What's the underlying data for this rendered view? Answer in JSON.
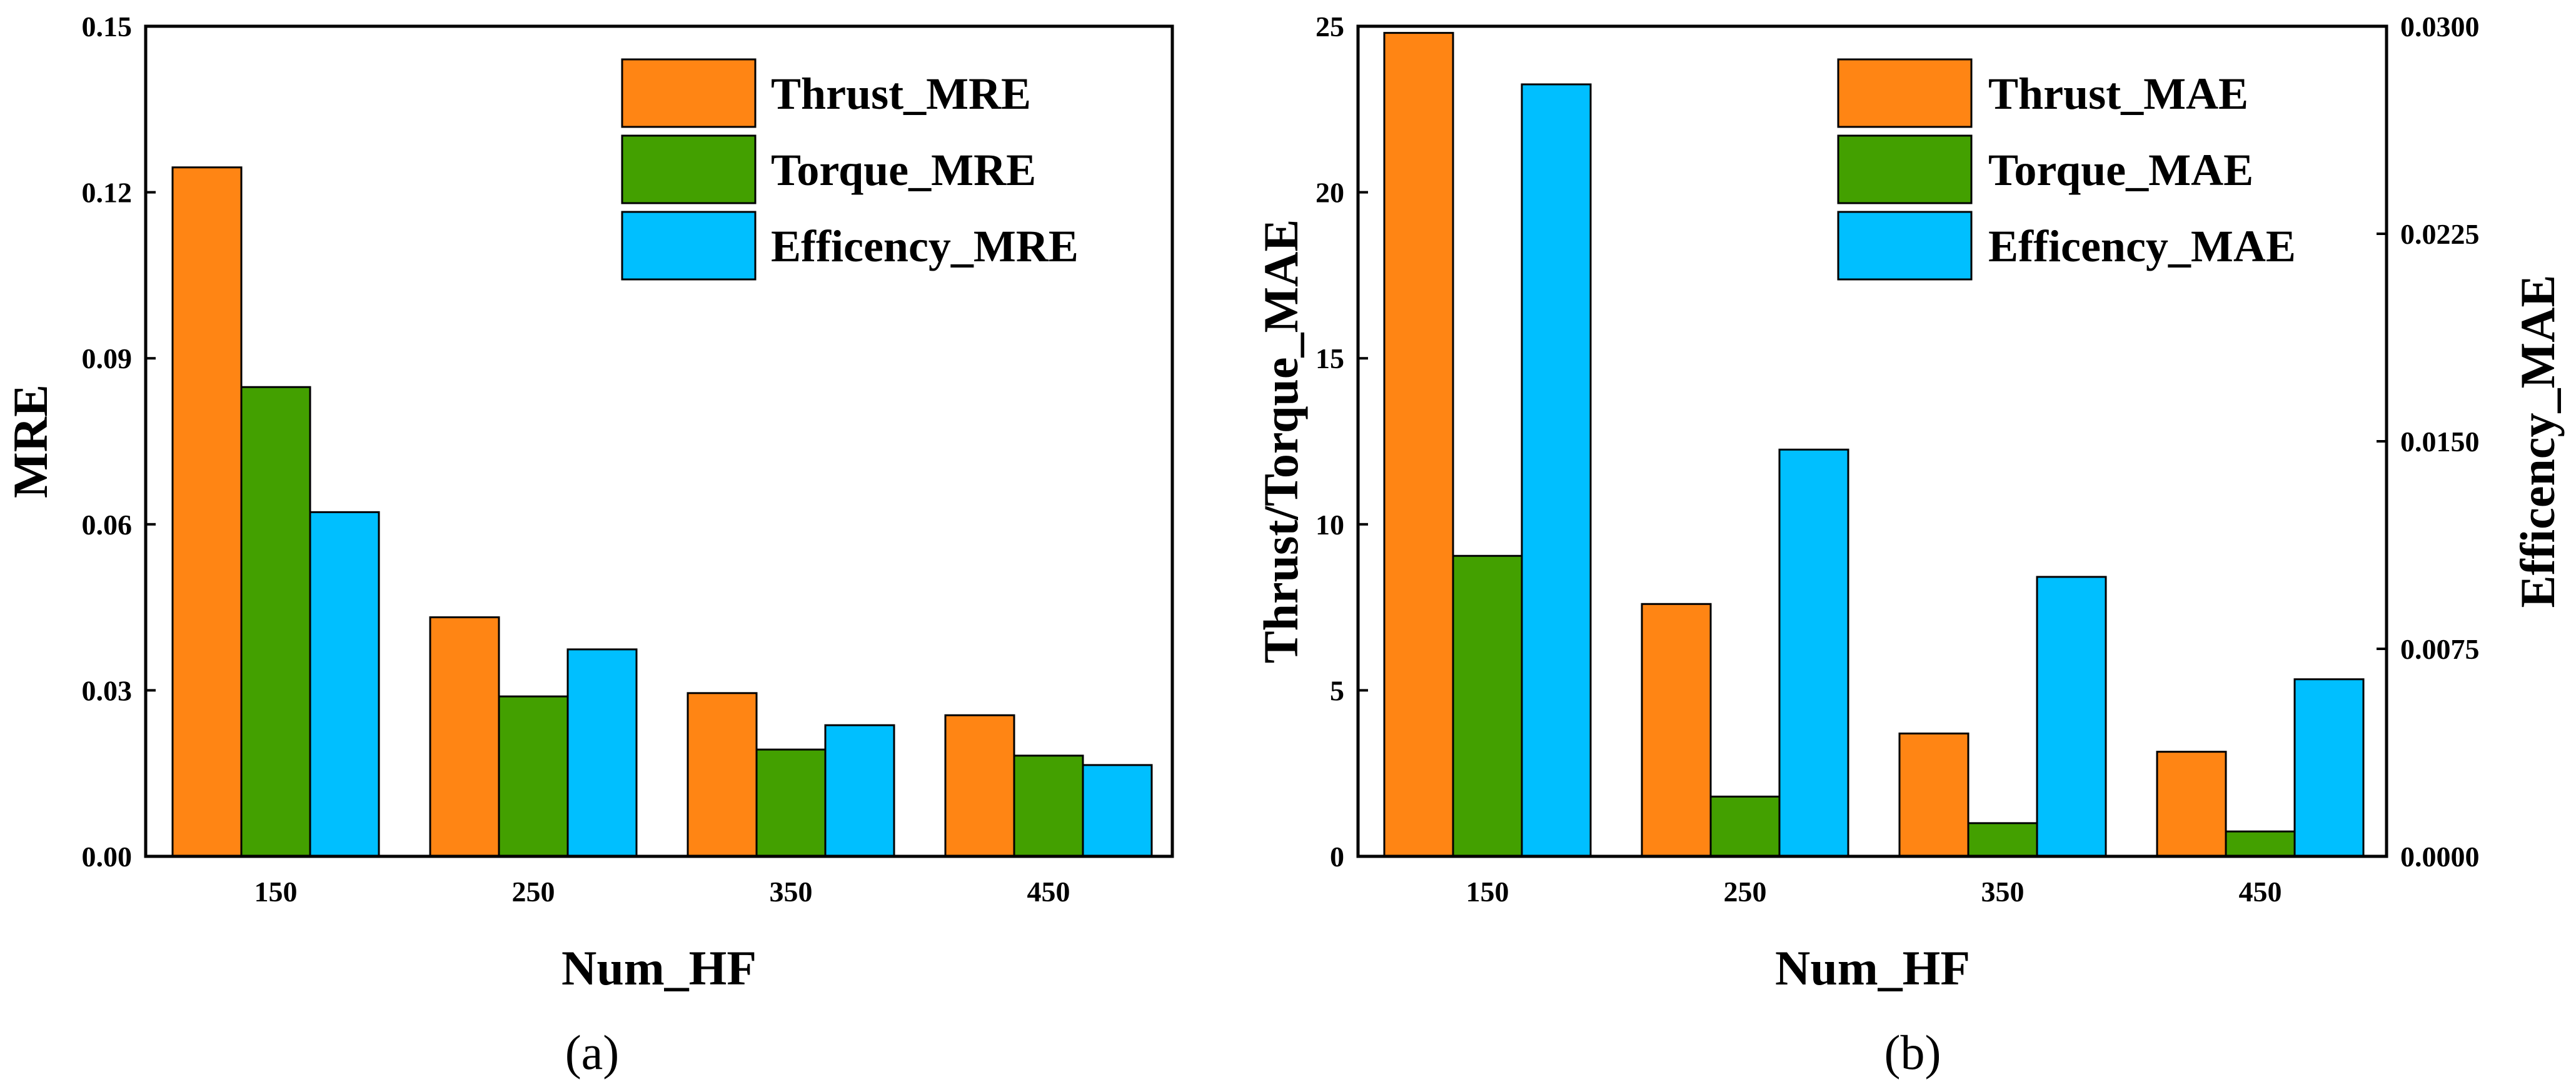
{
  "chart_data": [
    {
      "type": "bar",
      "panel": "a",
      "caption": "(a)",
      "xlabel": "Num_HF",
      "ylabel": "MRE",
      "categories": [
        "150",
        "250",
        "350",
        "450"
      ],
      "ylim": [
        0,
        0.15
      ],
      "yticks": [
        0,
        0.03,
        0.06,
        0.09,
        0.12,
        0.15
      ],
      "ytick_labels": [
        "0.00",
        "0.03",
        "0.06",
        "0.09",
        "0.12",
        "0.15"
      ],
      "series": [
        {
          "name": "Thrust_MRE",
          "color": "#FF8514",
          "values": [
            0.1245,
            0.0432,
            0.0295,
            0.0255
          ]
        },
        {
          "name": "Torque_MRE",
          "color": "#43A000",
          "values": [
            0.0848,
            0.0289,
            0.0193,
            0.0182
          ]
        },
        {
          "name": "Efficency_MRE",
          "color": "#00BFFF",
          "values": [
            0.0622,
            0.0374,
            0.0237,
            0.0165
          ]
        }
      ],
      "legend_position": "top-right"
    },
    {
      "type": "bar",
      "panel": "b",
      "caption": "(b)",
      "xlabel": "Num_HF",
      "ylabel": "Thrust/Torque_MAE",
      "ylabel_right": "Efficency_MAE",
      "categories": [
        "150",
        "250",
        "350",
        "450"
      ],
      "ylim": [
        0,
        25
      ],
      "yticks": [
        0,
        5,
        10,
        15,
        20,
        25
      ],
      "ytick_labels": [
        "0",
        "5",
        "10",
        "15",
        "20",
        "25"
      ],
      "ylim_right": [
        0,
        0.03
      ],
      "yticks_right": [
        0,
        0.0075,
        0.015,
        0.0225,
        0.03
      ],
      "ytick_labels_right": [
        "0.0000",
        "0.0075",
        "0.0150",
        "0.0225",
        "0.0300"
      ],
      "series": [
        {
          "name": "Thrust_MAE",
          "color": "#FF8514",
          "axis": "left",
          "values": [
            24.8,
            7.6,
            3.7,
            3.15
          ]
        },
        {
          "name": "Torque_MAE",
          "color": "#43A000",
          "axis": "left",
          "values": [
            9.05,
            1.8,
            1.0,
            0.75
          ]
        },
        {
          "name": "Efficency_MAE",
          "color": "#00BFFF",
          "axis": "right",
          "values": [
            0.0279,
            0.0147,
            0.0101,
            0.0064
          ]
        }
      ],
      "legend_position": "top-right"
    }
  ]
}
